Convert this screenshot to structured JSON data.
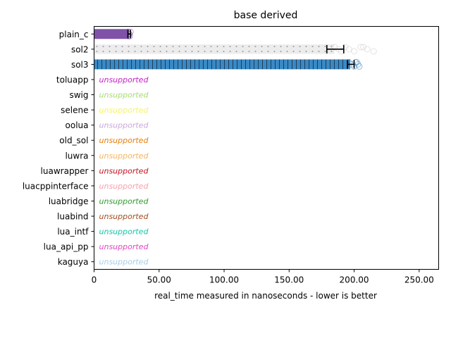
{
  "chart_data": {
    "type": "bar",
    "orientation": "horizontal",
    "title": "base derived",
    "xlabel": "real_time measured in nanoseconds - lower is better",
    "ylabel": "",
    "xlim": [
      0,
      265
    ],
    "x_ticks": [
      0,
      50,
      100,
      150,
      200,
      250
    ],
    "x_tick_labels": [
      "0",
      "50.00",
      "100.00",
      "150.00",
      "200.00",
      "250.00"
    ],
    "grid": false,
    "categories": [
      "plain_c",
      "sol2",
      "sol3",
      "toluapp",
      "swig",
      "selene",
      "oolua",
      "old_sol",
      "luwra",
      "luawrapper",
      "luacppinterface",
      "luabridge",
      "luabind",
      "lua_intf",
      "lua_api_pp",
      "kaguya"
    ],
    "series": [
      {
        "category": "plain_c",
        "value": 27,
        "error": [
          26,
          28
        ],
        "color": "#7f52a8",
        "pattern": "solid",
        "samples": [
          26,
          27,
          27.5,
          28,
          27,
          26.5
        ]
      },
      {
        "category": "sol2",
        "value": 185,
        "error": [
          179,
          192
        ],
        "color": "#e0e0e0",
        "pattern": "dots",
        "samples": [
          185,
          188,
          190,
          193,
          196,
          200,
          205,
          210,
          215,
          207
        ]
      },
      {
        "category": "sol3",
        "value": 197,
        "error": [
          195,
          200
        ],
        "color": "#3a89c4",
        "pattern": "vlines",
        "samples": [
          196,
          198,
          200,
          202,
          203,
          204,
          201
        ]
      },
      {
        "category": "toluapp",
        "unsupported": true,
        "color": "#c71fc7"
      },
      {
        "category": "swig",
        "unsupported": true,
        "color": "#a6dc72"
      },
      {
        "category": "selene",
        "unsupported": true,
        "color": "#f5f56a"
      },
      {
        "category": "oolua",
        "unsupported": true,
        "color": "#c9a9d8"
      },
      {
        "category": "old_sol",
        "unsupported": true,
        "color": "#e87e0c"
      },
      {
        "category": "luwra",
        "unsupported": true,
        "color": "#f5b45c"
      },
      {
        "category": "luawrapper",
        "unsupported": true,
        "color": "#c3121f"
      },
      {
        "category": "luacppinterface",
        "unsupported": true,
        "color": "#f4a2ae"
      },
      {
        "category": "luabridge",
        "unsupported": true,
        "color": "#2e9a2e"
      },
      {
        "category": "luabind",
        "unsupported": true,
        "color": "#a34e20"
      },
      {
        "category": "lua_intf",
        "unsupported": true,
        "color": "#14c4a8"
      },
      {
        "category": "lua_api_pp",
        "unsupported": true,
        "color": "#e048c0"
      },
      {
        "category": "kaguya",
        "unsupported": true,
        "color": "#a3cde8"
      }
    ],
    "unsupported_label": "unsupported"
  }
}
